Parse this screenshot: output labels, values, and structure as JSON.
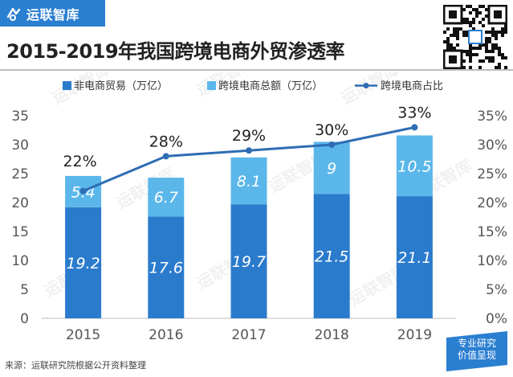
{
  "brand": {
    "name": "运联智库",
    "logo_icon": "brand-logo-icon",
    "color": "#2b7fd1"
  },
  "title": "2015-2019年我国跨境电商外贸渗透率",
  "source": "来源：运联研究院根据公开资料整理",
  "badge": {
    "line1": "专业研究",
    "line2": "价值呈现"
  },
  "qr_code_icon": "qr-code-icon",
  "watermark": "运联智库",
  "colors": {
    "bar_dark": "#2b7bcd",
    "bar_light": "#5bb7ea",
    "line": "#2f6db4"
  },
  "chart_data": {
    "type": "bar",
    "title": "2015-2019年我国跨境电商外贸渗透率",
    "categories": [
      "2015",
      "2016",
      "2017",
      "2018",
      "2019"
    ],
    "series": [
      {
        "name": "非电商贸易（万亿）",
        "kind": "stacked-bar",
        "axis": "left",
        "values": [
          19.2,
          17.6,
          19.7,
          21.5,
          21.1
        ]
      },
      {
        "name": "跨境电商总额（万亿）",
        "kind": "stacked-bar",
        "axis": "left",
        "values": [
          5.4,
          6.7,
          8.1,
          9,
          10.5
        ]
      },
      {
        "name": "跨境电商占比",
        "kind": "line",
        "axis": "right",
        "values": [
          22,
          28,
          29,
          30,
          33
        ],
        "labels": [
          "22%",
          "28%",
          "29%",
          "30%",
          "33%"
        ]
      }
    ],
    "y_left": {
      "min": 0,
      "max": 35,
      "ticks": [
        "0",
        "5",
        "10",
        "15",
        "20",
        "25",
        "30",
        "35"
      ]
    },
    "y_right": {
      "min": 0,
      "max": 35,
      "ticks": [
        "0%",
        "5%",
        "10%",
        "15%",
        "20%",
        "25%",
        "30%",
        "35%"
      ]
    },
    "legend": {
      "position": "top"
    },
    "grid": false
  }
}
